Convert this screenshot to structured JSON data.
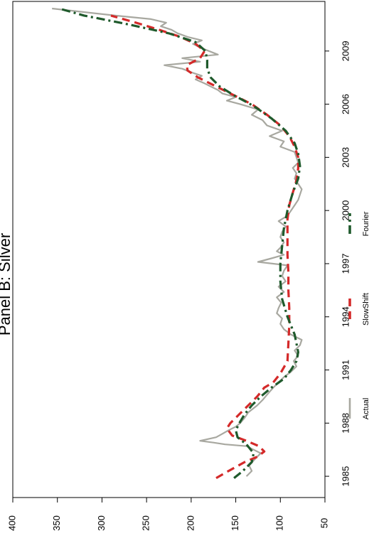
{
  "chart_data": {
    "type": "line",
    "title": "Panel B: Silver",
    "xlabel": "",
    "ylabel": "",
    "xlim": [
      1983.8,
      2011.8
    ],
    "ylim": [
      50,
      400
    ],
    "x_ticks": [
      1985,
      1988,
      1991,
      1994,
      1997,
      2000,
      2003,
      2006,
      2009
    ],
    "y_ticks": [
      50,
      100,
      150,
      200,
      250,
      300,
      350,
      400
    ],
    "grid": false,
    "legend_position": "bottom",
    "orientation": "rotated-90",
    "series": [
      {
        "name": "Actual",
        "color": "#a8a8a0",
        "style": "solid",
        "x": [
          1985.0,
          1985.3,
          1985.6,
          1986.0,
          1986.3,
          1986.5,
          1986.7,
          1986.8,
          1986.9,
          1987.0,
          1987.2,
          1987.4,
          1987.6,
          1987.8,
          1988.0,
          1988.3,
          1988.6,
          1989.0,
          1989.3,
          1989.6,
          1990.0,
          1990.3,
          1990.6,
          1990.9,
          1991.2,
          1991.5,
          1991.8,
          1992.1,
          1992.4,
          1992.7,
          1993.0,
          1993.3,
          1993.6,
          1993.9,
          1994.2,
          1994.5,
          1994.8,
          1995.1,
          1995.4,
          1995.7,
          1996.0,
          1996.3,
          1996.6,
          1996.9,
          1997.1,
          1997.3,
          1997.5,
          1997.7,
          1997.9,
          1998.2,
          1998.5,
          1998.8,
          1999.1,
          1999.4,
          1999.7,
          2000.0,
          2000.3,
          2000.6,
          2000.9,
          2001.2,
          2001.5,
          2001.8,
          2002.1,
          2002.4,
          2002.7,
          2003.0,
          2003.3,
          2003.6,
          2003.9,
          2004.2,
          2004.5,
          2004.8,
          2005.1,
          2005.4,
          2005.7,
          2006.0,
          2006.2,
          2006.4,
          2006.6,
          2006.8,
          2007.0,
          2007.2,
          2007.4,
          2007.6,
          2007.8,
          2008.0,
          2008.2,
          2008.4,
          2008.6,
          2008.8,
          2009.0,
          2009.2,
          2009.4,
          2009.6,
          2009.8,
          2010.0,
          2010.2,
          2010.4,
          2010.6,
          2010.8,
          2011.0,
          2011.2,
          2011.4
        ],
        "values": [
          138,
          132,
          135,
          128,
          122,
          130,
          138,
          162,
          175,
          190,
          172,
          165,
          158,
          150,
          145,
          140,
          136,
          126,
          120,
          115,
          108,
          102,
          96,
          88,
          82,
          85,
          80,
          84,
          78,
          76,
          88,
          96,
          100,
          98,
          104,
          102,
          99,
          104,
          96,
          102,
          94,
          98,
          96,
          92,
          125,
          110,
          96,
          104,
          100,
          96,
          100,
          98,
          94,
          102,
          92,
          88,
          84,
          80,
          78,
          76,
          80,
          84,
          82,
          86,
          80,
          82,
          84,
          100,
          96,
          112,
          98,
          115,
          120,
          132,
          125,
          145,
          160,
          150,
          165,
          170,
          178,
          186,
          195,
          188,
          200,
          210,
          230,
          190,
          210,
          170,
          180,
          190,
          198,
          188,
          204,
          215,
          222,
          234,
          228,
          245,
          285,
          320,
          356
        ]
      },
      {
        "name": "SlowShift",
        "color": "#d42a2a",
        "style": "dashed",
        "x": [
          1984.9,
          1985.3,
          1985.8,
          1986.1,
          1986.4,
          1986.7,
          1987.0,
          1987.3,
          1987.7,
          1988.0,
          1988.5,
          1989.0,
          1989.5,
          1990.0,
          1990.3,
          1990.8,
          1991.5,
          1992.5,
          1993.5,
          1994.5,
          1995.5,
          1996.5,
          1997.5,
          1998.5,
          1999.5,
          2000.3,
          2001.0,
          2001.7,
          2002.4,
          2003.0,
          2003.6,
          2004.2,
          2004.8,
          2005.4,
          2006.0,
          2006.5,
          2007.0,
          2007.5,
          2007.9,
          2008.2,
          2008.6,
          2009.0,
          2009.4,
          2009.8,
          2010.2,
          2010.6,
          2011.0
        ],
        "values": [
          172,
          158,
          140,
          126,
          118,
          124,
          138,
          154,
          160,
          156,
          146,
          136,
          126,
          118,
          108,
          100,
          92,
          91,
          90,
          90,
          91,
          91,
          92,
          92,
          92,
          90,
          86,
          82,
          80,
          80,
          84,
          90,
          100,
          115,
          132,
          152,
          172,
          192,
          204,
          205,
          190,
          185,
          195,
          212,
          236,
          262,
          290
        ]
      },
      {
        "name": "Fourier",
        "color": "#1f5a2c",
        "style": "dashdot",
        "x": [
          1984.9,
          1985.3,
          1985.8,
          1986.3,
          1986.8,
          1987.2,
          1987.6,
          1988.0,
          1988.5,
          1989.0,
          1989.5,
          1990.0,
          1990.5,
          1991.0,
          1991.5,
          1992.0,
          1993.0,
          1994.0,
          1995.0,
          1996.0,
          1997.0,
          1998.0,
          1999.0,
          2000.0,
          2001.0,
          2001.8,
          2002.5,
          2003.2,
          2003.8,
          2004.5,
          2005.2,
          2005.9,
          2006.5,
          2007.0,
          2007.5,
          2008.0,
          2008.5,
          2009.0,
          2009.5,
          2010.0,
          2010.5,
          2011.0,
          2011.4
        ],
        "values": [
          152,
          142,
          132,
          130,
          138,
          148,
          150,
          146,
          140,
          132,
          122,
          110,
          96,
          88,
          82,
          80,
          84,
          92,
          98,
          100,
          100,
          98,
          96,
          92,
          86,
          80,
          78,
          80,
          84,
          94,
          110,
          130,
          152,
          168,
          178,
          182,
          182,
          184,
          195,
          225,
          270,
          320,
          348
        ]
      }
    ]
  }
}
